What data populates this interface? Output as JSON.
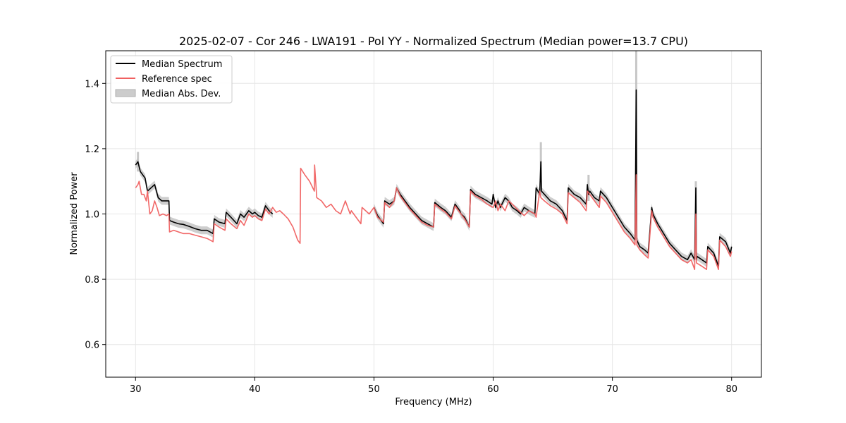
{
  "chart_data": {
    "type": "line",
    "title": "2025-02-07 - Cor 246 - LWA191 - Pol YY - Normalized Spectrum (Median power=13.7 CPU)",
    "xlabel": "Frequency (MHz)",
    "ylabel": "Normalized Power",
    "xlim": [
      27.5,
      82.5
    ],
    "ylim": [
      0.5,
      1.5
    ],
    "xticks": [
      30,
      40,
      50,
      60,
      70,
      80
    ],
    "yticks": [
      0.6,
      0.8,
      1.0,
      1.2,
      1.4
    ],
    "xtick_labels": [
      "30",
      "40",
      "50",
      "60",
      "70",
      "80"
    ],
    "ytick_labels": [
      "0.6",
      "0.8",
      "1.0",
      "1.2",
      "1.4"
    ],
    "grid": true,
    "legend_position": "top-left",
    "legend": [
      "Median Spectrum",
      "Reference spec",
      "Median Abs. Dev."
    ],
    "colors": {
      "median": "#000000",
      "reference": "#f06060",
      "mad": "#b0b0b0"
    },
    "series": [
      {
        "name": "Median Spectrum",
        "x": [
          30.0,
          30.2,
          30.4,
          30.6,
          30.8,
          31.0,
          31.3,
          31.6,
          31.9,
          32.2,
          32.5,
          32.8,
          32.85,
          33.2,
          33.6,
          34.0,
          34.5,
          35.0,
          35.5,
          36.0,
          36.5,
          36.6,
          37.0,
          37.5,
          37.6,
          38.0,
          38.5,
          38.8,
          39.1,
          39.5,
          39.8,
          40.0,
          40.3,
          40.6,
          40.9,
          41.2,
          41.5,
          50.0,
          50.3,
          50.8,
          50.9,
          51.3,
          51.7,
          51.9,
          52.2,
          52.6,
          53.0,
          53.5,
          54.0,
          54.5,
          55.0,
          55.1,
          55.6,
          56.0,
          56.5,
          56.8,
          57.2,
          57.3,
          57.6,
          58.0,
          58.1,
          58.5,
          59.0,
          59.5,
          59.9,
          60.0,
          60.2,
          60.4,
          60.6,
          61.0,
          61.3,
          61.6,
          62.0,
          62.3,
          62.6,
          63.0,
          63.5,
          63.6,
          63.9,
          64.0,
          64.05,
          64.3,
          64.8,
          65.3,
          65.8,
          66.2,
          66.3,
          66.8,
          67.3,
          67.8,
          67.9,
          68.0,
          68.1,
          68.5,
          68.9,
          69.0,
          69.5,
          70.0,
          70.5,
          71.0,
          71.5,
          71.9,
          72.0,
          72.05,
          72.3,
          72.7,
          73.0,
          73.3,
          73.4,
          73.8,
          74.3,
          74.8,
          75.3,
          75.8,
          76.3,
          76.6,
          76.9,
          77.0,
          77.05,
          77.1,
          77.5,
          77.9,
          78.0,
          78.5,
          78.9,
          79.0,
          79.5,
          79.9,
          80.0
        ],
        "y": [
          1.15,
          1.16,
          1.13,
          1.12,
          1.11,
          1.07,
          1.08,
          1.09,
          1.05,
          1.04,
          1.04,
          1.04,
          0.98,
          0.975,
          0.97,
          0.968,
          0.962,
          0.955,
          0.95,
          0.95,
          0.94,
          0.985,
          0.975,
          0.97,
          1.005,
          0.99,
          0.97,
          1.0,
          0.99,
          1.01,
          1.0,
          1.005,
          0.995,
          0.99,
          1.025,
          1.01,
          1.0,
          1.02,
          0.995,
          0.97,
          1.04,
          1.03,
          1.04,
          1.08,
          1.06,
          1.04,
          1.02,
          1.0,
          0.98,
          0.97,
          0.96,
          1.035,
          1.02,
          1.01,
          0.99,
          1.03,
          1.01,
          1.0,
          0.99,
          0.96,
          1.075,
          1.06,
          1.05,
          1.04,
          1.03,
          1.06,
          1.02,
          1.04,
          1.02,
          1.05,
          1.04,
          1.02,
          1.01,
          1.0,
          1.02,
          1.01,
          1.0,
          1.08,
          1.06,
          1.16,
          1.07,
          1.06,
          1.04,
          1.03,
          1.01,
          0.98,
          1.08,
          1.06,
          1.05,
          1.03,
          1.09,
          1.06,
          1.07,
          1.05,
          1.04,
          1.07,
          1.05,
          1.02,
          0.99,
          0.96,
          0.94,
          0.92,
          1.38,
          0.92,
          0.9,
          0.89,
          0.88,
          1.02,
          1.0,
          0.97,
          0.94,
          0.91,
          0.89,
          0.87,
          0.86,
          0.88,
          0.86,
          1.08,
          0.86,
          0.87,
          0.86,
          0.85,
          0.9,
          0.88,
          0.84,
          0.93,
          0.915,
          0.88,
          0.9
        ]
      },
      {
        "name": "Reference spec",
        "x": [
          30.0,
          30.2,
          30.3,
          30.5,
          30.7,
          30.9,
          31.0,
          31.2,
          31.4,
          31.6,
          31.8,
          32.0,
          32.3,
          32.6,
          32.8,
          32.85,
          33.2,
          33.6,
          34.0,
          34.5,
          35.0,
          35.5,
          36.0,
          36.5,
          36.6,
          37.0,
          37.5,
          37.6,
          38.0,
          38.5,
          38.8,
          39.1,
          39.5,
          39.8,
          40.0,
          40.3,
          40.6,
          40.9,
          41.2,
          41.5,
          41.8,
          42.1,
          42.4,
          42.8,
          43.2,
          43.6,
          43.8,
          43.85,
          44.2,
          44.6,
          45.0,
          45.02,
          45.2,
          45.6,
          46.0,
          46.4,
          46.8,
          47.2,
          47.6,
          48.0,
          48.1,
          48.5,
          48.9,
          49.0,
          49.3,
          49.6,
          50.0,
          50.3,
          50.8,
          50.9,
          51.3,
          51.7,
          51.9,
          52.2,
          52.6,
          53.0,
          53.5,
          54.0,
          54.5,
          55.0,
          55.1,
          55.6,
          56.0,
          56.5,
          56.8,
          57.2,
          57.6,
          58.0,
          58.1,
          58.5,
          59.0,
          59.5,
          60.0,
          60.2,
          60.4,
          60.6,
          61.0,
          61.3,
          61.6,
          62.0,
          62.3,
          62.6,
          63.0,
          63.5,
          63.6,
          63.9,
          64.0,
          64.3,
          64.8,
          65.3,
          65.8,
          66.2,
          66.3,
          66.8,
          67.3,
          67.8,
          67.9,
          68.5,
          68.9,
          69.0,
          69.5,
          70.0,
          70.5,
          71.0,
          71.5,
          71.9,
          72.0,
          72.05,
          72.3,
          72.7,
          73.0,
          73.3,
          73.4,
          73.8,
          74.3,
          74.8,
          75.3,
          75.8,
          76.3,
          76.6,
          76.9,
          77.0,
          77.05,
          77.5,
          77.9,
          78.0,
          78.5,
          78.9,
          79.0,
          79.5,
          79.9,
          80.0
        ],
        "y": [
          1.08,
          1.09,
          1.1,
          1.06,
          1.06,
          1.04,
          1.07,
          1.0,
          1.01,
          1.04,
          1.02,
          0.995,
          1.0,
          0.995,
          1.0,
          0.945,
          0.95,
          0.945,
          0.94,
          0.94,
          0.935,
          0.93,
          0.925,
          0.915,
          0.97,
          0.96,
          0.95,
          0.985,
          0.97,
          0.955,
          0.98,
          0.965,
          1.0,
          0.99,
          0.995,
          0.985,
          0.98,
          1.015,
          1.0,
          1.02,
          1.005,
          1.01,
          1.0,
          0.985,
          0.96,
          0.92,
          0.91,
          1.14,
          1.12,
          1.1,
          1.07,
          1.15,
          1.05,
          1.04,
          1.02,
          1.03,
          1.01,
          1.0,
          1.04,
          1.0,
          1.01,
          0.99,
          0.97,
          1.02,
          1.01,
          1.0,
          1.02,
          0.99,
          0.975,
          1.035,
          1.02,
          1.04,
          1.08,
          1.055,
          1.035,
          1.015,
          0.995,
          0.975,
          0.965,
          0.96,
          1.03,
          1.015,
          1.005,
          0.985,
          1.025,
          1.005,
          0.985,
          0.96,
          1.07,
          1.055,
          1.045,
          1.03,
          1.02,
          1.04,
          1.01,
          1.03,
          1.01,
          1.04,
          1.03,
          1.015,
          1.005,
          0.995,
          1.01,
          1.0,
          0.99,
          1.07,
          1.05,
          1.04,
          1.025,
          1.015,
          1.0,
          0.97,
          1.065,
          1.05,
          1.035,
          1.01,
          1.07,
          1.04,
          1.02,
          1.055,
          1.035,
          1.005,
          0.975,
          0.945,
          0.925,
          0.905,
          1.12,
          0.905,
          0.89,
          0.875,
          0.865,
          1.01,
          0.99,
          0.96,
          0.93,
          0.9,
          0.88,
          0.86,
          0.85,
          0.86,
          0.83,
          1.0,
          0.85,
          0.84,
          0.83,
          0.89,
          0.87,
          0.83,
          0.92,
          0.9,
          0.87,
          0.885
        ]
      }
    ],
    "mad_spikes": [
      {
        "x": 30.2,
        "low": 1.13,
        "high": 1.19
      },
      {
        "x": 64.0,
        "low": 1.06,
        "high": 1.22
      },
      {
        "x": 68.0,
        "low": 1.04,
        "high": 1.12
      },
      {
        "x": 72.0,
        "low": 0.92,
        "high": 1.5
      },
      {
        "x": 77.0,
        "low": 0.86,
        "high": 1.1
      }
    ],
    "mad_band_width": 0.012
  }
}
